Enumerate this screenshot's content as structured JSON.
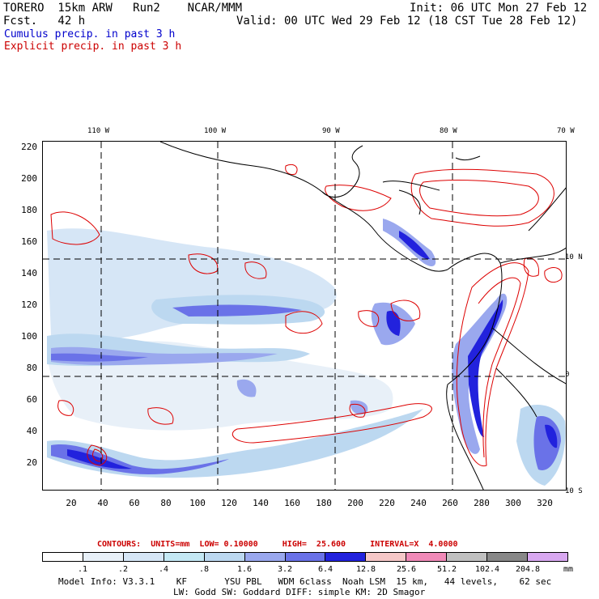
{
  "header": {
    "model": "TORERO  15km ARW   Run2    NCAR/MMM",
    "init": "Init: 06 UTC Mon 27 Feb 12",
    "fcst": "Fcst.   42 h",
    "valid": "Valid: 00 UTC Wed 29 Feb 12 (18 CST Tue 28 Feb 12)",
    "cumulus_label": "Cumulus precip. in past 3 h",
    "explicit_label": "Explicit precip. in past 3 h"
  },
  "axes": {
    "lon_labels": [
      "110 W",
      "100 W",
      "90 W",
      "80 W",
      "70 W"
    ],
    "lat_labels": [
      "10 N",
      "0",
      "10 S"
    ],
    "y_ticks": [
      "220",
      "200",
      "180",
      "160",
      "140",
      "120",
      "100",
      "80",
      "60",
      "40",
      "20"
    ],
    "x_ticks": [
      "20",
      "40",
      "60",
      "80",
      "100",
      "120",
      "140",
      "160",
      "180",
      "200",
      "220",
      "240",
      "260",
      "280",
      "300",
      "320"
    ]
  },
  "contours": "CONTOURS:  UNITS=mm  LOW= 0.10000     HIGH=  25.600     INTERVAL=X  4.0000",
  "legend": {
    "colors": [
      "#ffffff",
      "#e8f0f8",
      "#d6e6f6",
      "#c4e8f4",
      "#bcd8f0",
      "#9aa8ee",
      "#6a72e8",
      "#2222dd",
      "#f6c8c8",
      "#f08ab8",
      "#c0c0c0",
      "#888888",
      "#d8a8f0"
    ],
    "labels": [
      ".1",
      ".2",
      ".4",
      ".8",
      "1.6",
      "3.2",
      "6.4",
      "12.8",
      "25.6",
      "51.2",
      "102.4",
      "204.8"
    ],
    "units": "mm"
  },
  "footer": {
    "line1": "Model Info: V3.3.1    KF       YSU PBL   WDM 6class  Noah LSM  15 km,   44 levels,    62 sec",
    "line2": "LW: Godd SW: Goddard DIFF: simple KM: 2D Smagor"
  }
}
